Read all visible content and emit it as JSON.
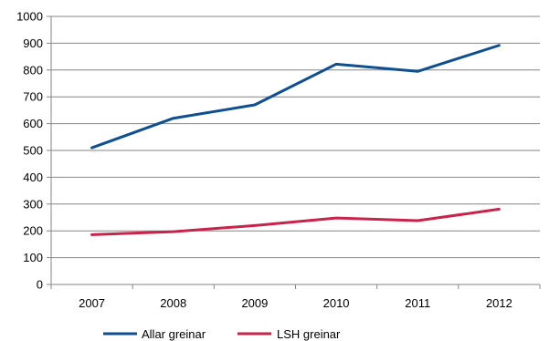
{
  "chart_data": {
    "type": "line",
    "title": "",
    "xlabel": "",
    "ylabel": "",
    "categories": [
      "2007",
      "2008",
      "2009",
      "2010",
      "2011",
      "2012"
    ],
    "y_ticks": [
      "0",
      "100",
      "200",
      "300",
      "400",
      "500",
      "600",
      "700",
      "800",
      "900",
      "1000"
    ],
    "ylim": [
      0,
      1000
    ],
    "grid": "horizontal",
    "legend_position": "bottom",
    "series": [
      {
        "name": "Allar greinar",
        "color": "#0d4f91",
        "values": [
          510,
          620,
          670,
          822,
          795,
          892
        ]
      },
      {
        "name": "LSH greinar",
        "color": "#c8234a",
        "values": [
          186,
          197,
          220,
          248,
          238,
          281
        ]
      }
    ]
  }
}
